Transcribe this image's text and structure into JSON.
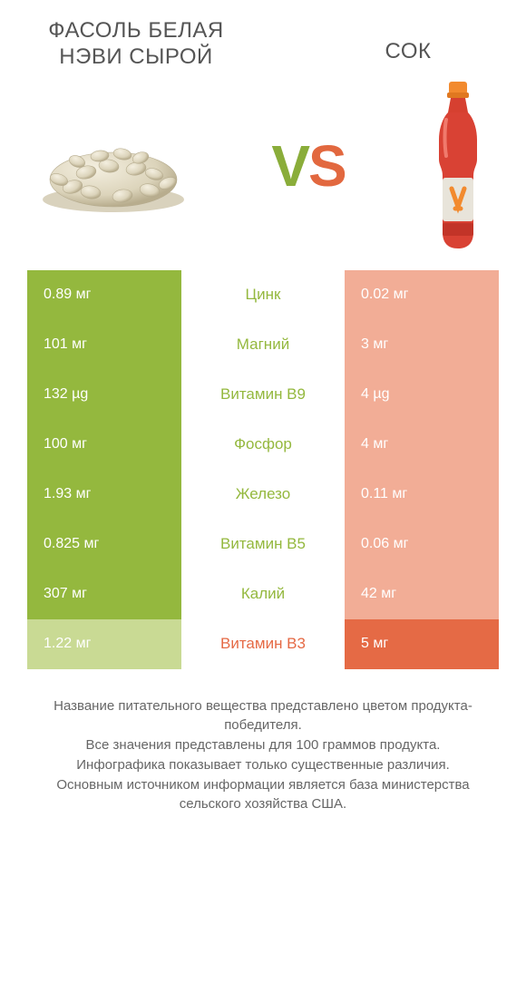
{
  "titles": {
    "left": "ФАСОЛЬ БЕЛАЯ НЭВИ СЫРОЙ",
    "right": "СОК"
  },
  "vs": {
    "v": "V",
    "s": "S"
  },
  "colors": {
    "left_winner": "#94b83e",
    "left_loser": "#c9da94",
    "right_winner": "#e56a45",
    "right_loser": "#f2ad96",
    "mid_left": "#94b83e",
    "mid_right": "#e56a45",
    "mid_neutral": "#777777"
  },
  "rows": [
    {
      "left": "0.89 мг",
      "mid": "Цинк",
      "right": "0.02 мг",
      "winner": "left"
    },
    {
      "left": "101 мг",
      "mid": "Магний",
      "right": "3 мг",
      "winner": "left"
    },
    {
      "left": "132 µg",
      "mid": "Витамин B9",
      "right": "4 µg",
      "winner": "left"
    },
    {
      "left": "100 мг",
      "mid": "Фосфор",
      "right": "4 мг",
      "winner": "left"
    },
    {
      "left": "1.93 мг",
      "mid": "Железо",
      "right": "0.11 мг",
      "winner": "left"
    },
    {
      "left": "0.825 мг",
      "mid": "Витамин B5",
      "right": "0.06 мг",
      "winner": "left"
    },
    {
      "left": "307 мг",
      "mid": "Калий",
      "right": "42 мг",
      "winner": "left"
    },
    {
      "left": "1.22 мг",
      "mid": "Витамин B3",
      "right": "5 мг",
      "winner": "right"
    }
  ],
  "footer": [
    "Название питательного вещества представлено цветом продукта-победителя.",
    "Все значения представлены для 100 граммов продукта.",
    "Инфографика показывает только существенные различия.",
    "Основным источником информации является база министерства сельского хозяйства США."
  ]
}
